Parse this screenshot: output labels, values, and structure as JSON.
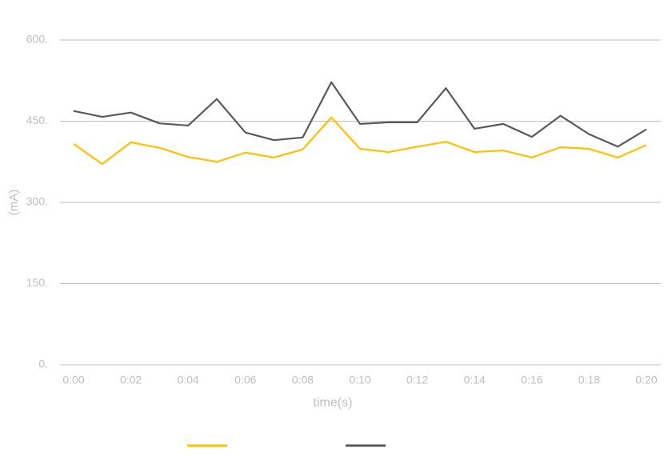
{
  "chart_data": {
    "type": "line",
    "x_label": "time(s)",
    "y_label": "(mA)",
    "categories": [
      "0:00",
      null,
      "0:02",
      null,
      "0:04",
      null,
      "0:06",
      null,
      "0:08",
      null,
      "0:10",
      null,
      "0:12",
      null,
      "0:14",
      null,
      "0:16",
      null,
      "0:18",
      null,
      "0:20"
    ],
    "series": [
      {
        "color": "#ffc000",
        "values": [
          408,
          371,
          411,
          401,
          384,
          375,
          392,
          383,
          398,
          457,
          399,
          393,
          403,
          412,
          393,
          396,
          383,
          402,
          399,
          383,
          406
        ]
      },
      {
        "color": "#595959",
        "values": [
          469,
          458,
          466,
          446,
          442,
          491,
          429,
          415,
          420,
          522,
          445,
          448,
          448,
          511,
          436,
          445,
          421,
          460,
          426,
          403,
          435
        ]
      }
    ],
    "ylim": [
      0,
      600
    ],
    "yticks": [
      {
        "value": 0,
        "label": "0."
      },
      {
        "value": 150,
        "label": "150."
      },
      {
        "value": 300,
        "label": "300."
      },
      {
        "value": 450,
        "label": "450."
      },
      {
        "value": 600,
        "label": "600."
      }
    ],
    "grid": true
  }
}
